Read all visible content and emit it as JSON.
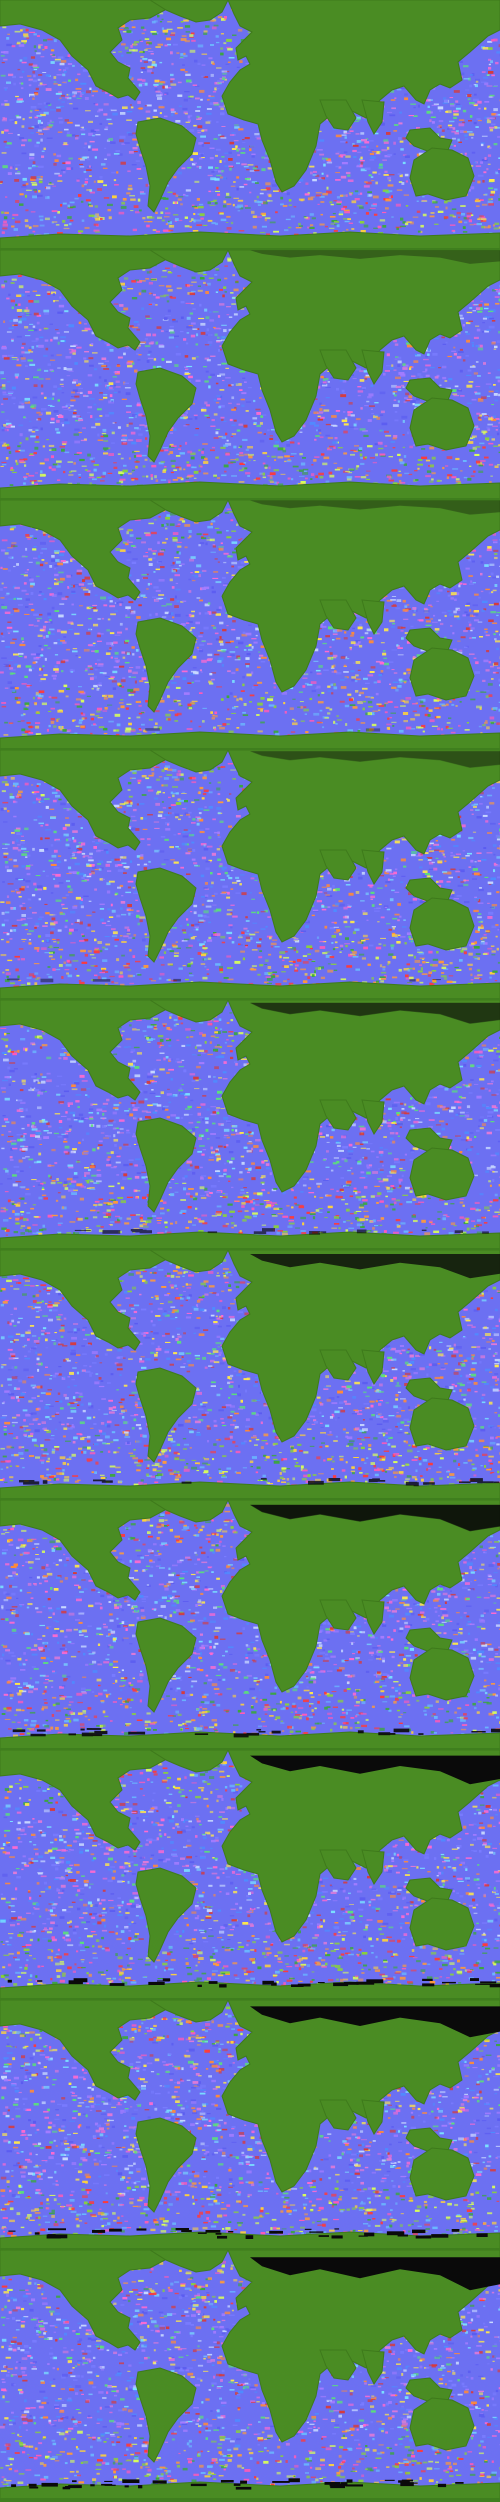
{
  "figure": {
    "panel_count": 10,
    "colors": {
      "land": "#4a8c23",
      "land_edge": "#3e7a1b",
      "sea_ice": "#0a0a0a",
      "ocean_palette": [
        "#5b5cf0",
        "#7a7cff",
        "#4e8cff",
        "#a47cff",
        "#e07ad8",
        "#ff6ad0",
        "#7ae0ff",
        "#c8d8ff",
        "#5be07a",
        "#ffe84a",
        "#ff8a3a",
        "#d83a3a"
      ],
      "polar_palette": [
        "#ff3a3a",
        "#ffd23a",
        "#8ad23a",
        "#3aa83a",
        "#ff9a3a",
        "#d8ff5a",
        "#ff5ab8",
        "#6ab8ff"
      ]
    },
    "panels": [
      {
        "index": 1,
        "sea_ice_level": 0.0
      },
      {
        "index": 2,
        "sea_ice_level": 0.02
      },
      {
        "index": 3,
        "sea_ice_level": 0.05
      },
      {
        "index": 4,
        "sea_ice_level": 0.15
      },
      {
        "index": 5,
        "sea_ice_level": 0.35
      },
      {
        "index": 6,
        "sea_ice_level": 0.5
      },
      {
        "index": 7,
        "sea_ice_level": 0.6
      },
      {
        "index": 8,
        "sea_ice_level": 0.7
      },
      {
        "index": 9,
        "sea_ice_level": 0.8
      },
      {
        "index": 10,
        "sea_ice_level": 0.9
      }
    ]
  }
}
